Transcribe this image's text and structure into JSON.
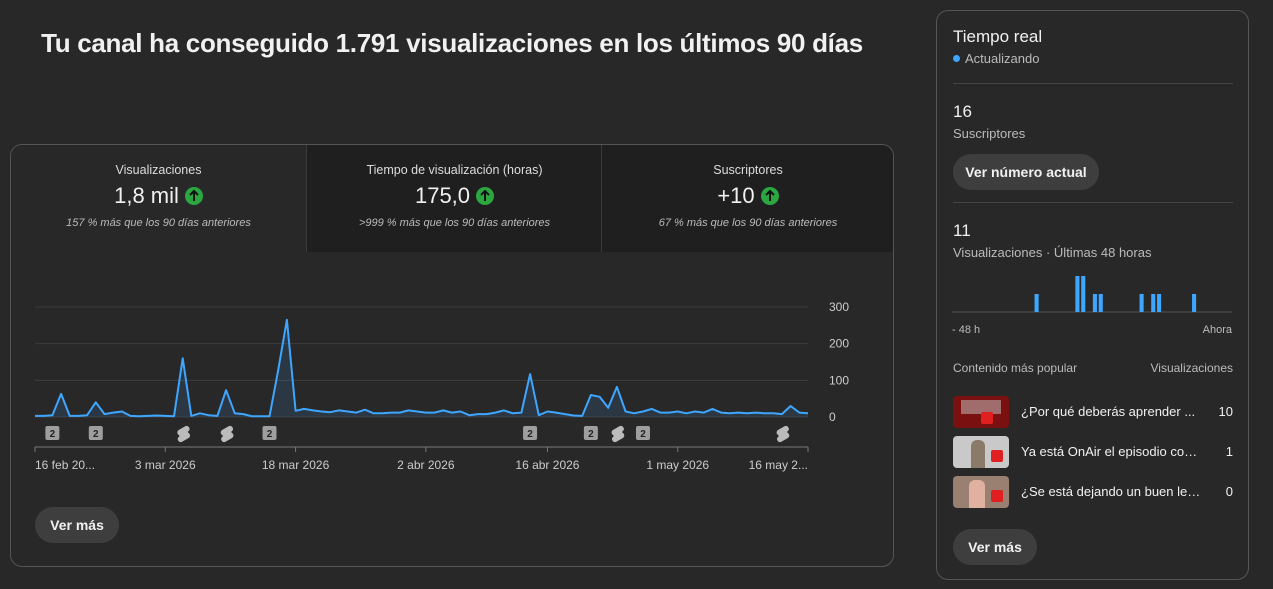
{
  "header": {
    "title": "Tu canal ha conseguido 1.791 visualizaciones en los últimos 90 días"
  },
  "metrics": [
    {
      "label": "Visualizaciones",
      "value": "1,8 mil",
      "note": "157 % más que los 90 días anteriores"
    },
    {
      "label": "Tiempo de visualización (horas)",
      "value": "175,0",
      "note": ">999 % más que los 90 días anteriores"
    },
    {
      "label": "Suscriptores",
      "value": "+10",
      "note": "67 % más que los 90 días anteriores"
    }
  ],
  "chart_data": [
    {
      "type": "line",
      "color": "#3ea6ff",
      "categories": [
        "16 feb 20...",
        null,
        null,
        null,
        null,
        null,
        null,
        null,
        null,
        null,
        null,
        null,
        null,
        null,
        null,
        "3 mar 2026",
        null,
        null,
        null,
        null,
        null,
        null,
        null,
        null,
        null,
        null,
        null,
        null,
        null,
        null,
        "18 mar 2026",
        null,
        null,
        null,
        null,
        null,
        null,
        null,
        null,
        null,
        null,
        null,
        null,
        null,
        null,
        "2 abr 2026",
        null,
        null,
        null,
        null,
        null,
        null,
        null,
        null,
        null,
        null,
        null,
        null,
        null,
        "16 abr 2026",
        null,
        null,
        null,
        null,
        null,
        null,
        null,
        null,
        null,
        null,
        null,
        null,
        null,
        null,
        "1 may 2026",
        null,
        null,
        null,
        null,
        null,
        null,
        null,
        null,
        null,
        null,
        null,
        null,
        null,
        null,
        "16 may 2..."
      ],
      "values": [
        3,
        3,
        5,
        63,
        3,
        3,
        5,
        40,
        8,
        12,
        15,
        3,
        2,
        3,
        4,
        3,
        2,
        160,
        3,
        10,
        5,
        3,
        73,
        10,
        8,
        2,
        2,
        2,
        128,
        265,
        17,
        22,
        18,
        15,
        13,
        18,
        15,
        12,
        20,
        10,
        10,
        12,
        12,
        18,
        15,
        12,
        12,
        18,
        12,
        15,
        5,
        8,
        8,
        12,
        18,
        10,
        12,
        117,
        5,
        15,
        12,
        8,
        4,
        3,
        60,
        55,
        25,
        82,
        15,
        10,
        15,
        22,
        12,
        12,
        15,
        10,
        15,
        12,
        22,
        12,
        10,
        12,
        10,
        12,
        10,
        10,
        8,
        30,
        12,
        10
      ],
      "ylim": [
        0,
        300
      ],
      "yticks": [
        0,
        100,
        200,
        300
      ],
      "grid": true,
      "badges": [
        {
          "x": 2,
          "label": "2"
        },
        {
          "x": 7,
          "label": "2"
        },
        {
          "x": 27,
          "label": "2"
        },
        {
          "x": 57,
          "label": "2"
        },
        {
          "x": 64,
          "label": "2"
        },
        {
          "x": 70,
          "label": "2"
        }
      ],
      "shorts_x": [
        17,
        22,
        67,
        86
      ]
    },
    {
      "type": "bar",
      "color": "#3ea6ff",
      "categories": [
        "- 48 h",
        null,
        null,
        null,
        null,
        null,
        null,
        null,
        null,
        null,
        null,
        null,
        null,
        null,
        null,
        null,
        null,
        null,
        null,
        null,
        null,
        null,
        null,
        null,
        null,
        null,
        null,
        null,
        null,
        null,
        null,
        null,
        null,
        null,
        null,
        null,
        null,
        null,
        null,
        null,
        null,
        null,
        null,
        null,
        null,
        null,
        null,
        "Ahora"
      ],
      "values": [
        0,
        0,
        0,
        0,
        0,
        0,
        0,
        0,
        0,
        0,
        0,
        0,
        0,
        0,
        1,
        0,
        0,
        0,
        0,
        0,
        0,
        2,
        2,
        0,
        1,
        1,
        0,
        0,
        0,
        0,
        0,
        0,
        1,
        0,
        1,
        1,
        0,
        0,
        0,
        0,
        0,
        1,
        0,
        0,
        0,
        0,
        0,
        0
      ]
    }
  ],
  "buttons": {
    "more_main": "Ver más",
    "more_side": "Ver más",
    "current": "Ver número actual"
  },
  "realtime": {
    "title": "Tiempo real",
    "status": "Actualizando",
    "subs_value": "16",
    "subs_label": "Suscriptores",
    "views_value": "11",
    "views_label": "Visualizaciones · Últimas 48 horas",
    "top_header": "Contenido más popular",
    "top_metric": "Visualizaciones",
    "top": [
      {
        "title": "¿Por qué deberás aprender ...",
        "views": 10
      },
      {
        "title": "Ya está OnAir el episodio con ...",
        "views": 1
      },
      {
        "title": "¿Se está dejando un buen leg...",
        "views": 0
      }
    ]
  }
}
